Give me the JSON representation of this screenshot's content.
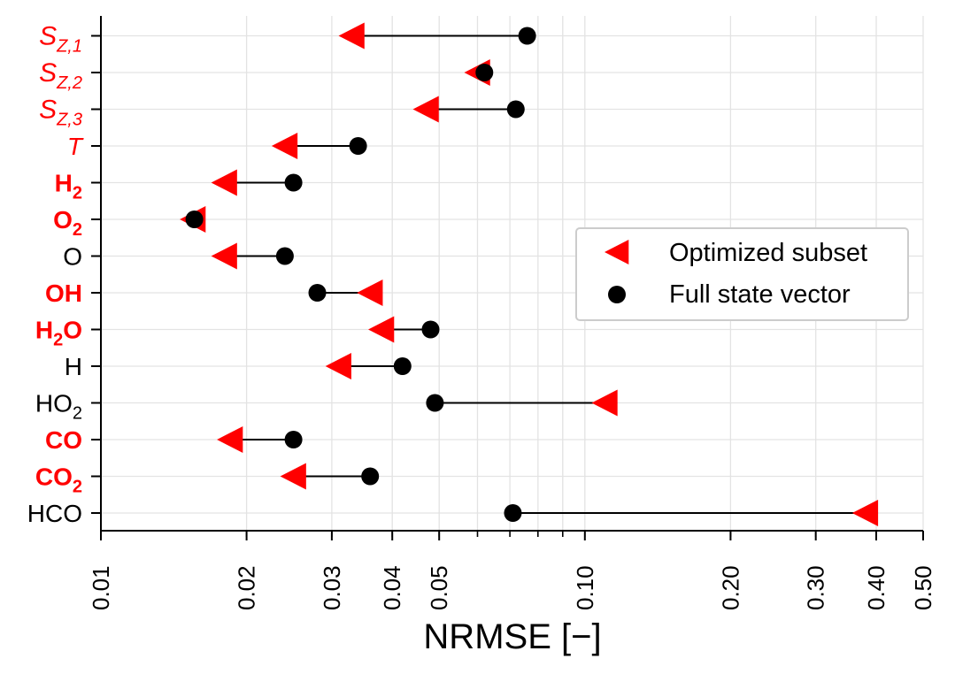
{
  "chart_data": {
    "type": "scatter",
    "xscale": "log",
    "xlim": [
      0.01,
      0.5
    ],
    "xlabel": "NRMSE [−]",
    "xticks": [
      0.01,
      0.02,
      0.03,
      0.04,
      0.05,
      0.1,
      0.2,
      0.3,
      0.4,
      0.5
    ],
    "xtick_labels": [
      "0.01",
      "0.02",
      "0.03",
      "0.04",
      "0.05",
      "0.10",
      "0.20",
      "0.30",
      "0.40",
      "0.50"
    ],
    "grid": true,
    "legend_position": "center-right",
    "categories": [
      {
        "label": "S",
        "sub": "Z,1",
        "style": "italic",
        "color": "#ff0000"
      },
      {
        "label": "S",
        "sub": "Z,2",
        "style": "italic",
        "color": "#ff0000"
      },
      {
        "label": "S",
        "sub": "Z,3",
        "style": "italic",
        "color": "#ff0000"
      },
      {
        "label": "T",
        "sub": "",
        "style": "italic",
        "color": "#ff0000"
      },
      {
        "label": "H",
        "sub": "2",
        "style": "bold",
        "color": "#ff0000"
      },
      {
        "label": "O",
        "sub": "2",
        "style": "bold",
        "color": "#ff0000"
      },
      {
        "label": "O",
        "sub": "",
        "style": "normal",
        "color": "#000000"
      },
      {
        "label": "OH",
        "sub": "",
        "style": "bold",
        "color": "#ff0000"
      },
      {
        "label": "H",
        "sub": "2",
        "tail": "O",
        "style": "bold",
        "color": "#ff0000"
      },
      {
        "label": "H",
        "sub": "",
        "style": "normal",
        "color": "#000000"
      },
      {
        "label": "HO",
        "sub": "2",
        "style": "normal",
        "color": "#000000"
      },
      {
        "label": "CO",
        "sub": "",
        "style": "bold",
        "color": "#ff0000"
      },
      {
        "label": "CO",
        "sub": "2",
        "style": "bold",
        "color": "#ff0000"
      },
      {
        "label": "HCO",
        "sub": "",
        "style": "normal",
        "color": "#000000"
      }
    ],
    "series": [
      {
        "name": "Optimized subset",
        "marker": "triangle-left",
        "color": "#ff0000",
        "values": [
          0.033,
          0.06,
          0.047,
          0.024,
          0.018,
          0.0155,
          0.018,
          0.036,
          0.038,
          0.031,
          0.11,
          0.0185,
          0.025,
          0.38
        ]
      },
      {
        "name": "Full state vector",
        "marker": "circle",
        "color": "#000000",
        "values": [
          0.076,
          0.062,
          0.072,
          0.034,
          0.025,
          0.0156,
          0.024,
          0.028,
          0.048,
          0.042,
          0.049,
          0.025,
          0.036,
          0.071
        ]
      }
    ]
  }
}
